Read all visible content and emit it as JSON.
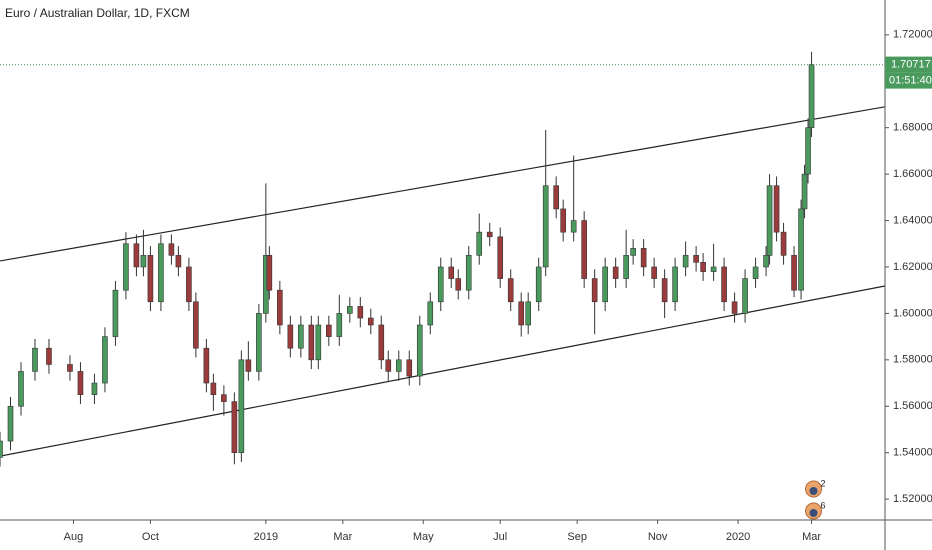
{
  "chart_data": {
    "type": "candlestick",
    "title": "Euro / Australian Dollar, 1D, FXCM",
    "up_color": "#4a9a5e",
    "down_color": "#9b3b3b",
    "x": [
      0,
      3,
      6,
      10,
      14,
      20,
      23,
      27,
      30,
      33,
      36,
      39,
      41,
      43,
      46,
      49,
      51,
      54,
      56,
      59,
      61,
      64,
      67,
      69,
      71,
      74,
      76,
      77,
      80,
      83,
      86,
      89,
      91,
      94,
      97,
      100,
      103,
      106,
      109,
      111,
      114,
      117,
      120,
      123,
      126,
      129,
      131,
      134,
      137,
      140,
      143,
      146,
      149,
      151,
      154,
      156,
      159,
      161,
      164,
      167,
      170,
      173,
      176,
      179,
      181,
      184,
      187,
      190,
      193,
      196,
      199,
      201,
      204,
      207,
      210,
      213,
      216,
      219,
      220,
      222,
      224,
      227,
      229,
      230,
      231,
      232
    ],
    "open": [
      1.538,
      1.545,
      1.56,
      1.575,
      1.585,
      1.578,
      1.575,
      1.565,
      1.57,
      1.59,
      1.61,
      1.63,
      1.62,
      1.625,
      1.605,
      1.63,
      1.625,
      1.62,
      1.605,
      1.585,
      1.57,
      1.565,
      1.562,
      1.54,
      1.58,
      1.575,
      1.6,
      1.625,
      1.61,
      1.595,
      1.585,
      1.595,
      1.58,
      1.595,
      1.59,
      1.6,
      1.603,
      1.598,
      1.595,
      1.58,
      1.575,
      1.58,
      1.573,
      1.595,
      1.605,
      1.62,
      1.615,
      1.61,
      1.625,
      1.635,
      1.633,
      1.615,
      1.605,
      1.595,
      1.605,
      1.62,
      1.655,
      1.645,
      1.635,
      1.64,
      1.615,
      1.605,
      1.62,
      1.615,
      1.625,
      1.628,
      1.62,
      1.615,
      1.605,
      1.62,
      1.625,
      1.622,
      1.618,
      1.62,
      1.605,
      1.6,
      1.615,
      1.62,
      1.625,
      1.655,
      1.635,
      1.625,
      1.61,
      1.645,
      1.66,
      1.68
    ],
    "high": [
      1.549,
      1.564,
      1.579,
      1.589,
      1.589,
      1.582,
      1.579,
      1.574,
      1.594,
      1.614,
      1.635,
      1.634,
      1.636,
      1.629,
      1.634,
      1.634,
      1.629,
      1.624,
      1.609,
      1.589,
      1.574,
      1.569,
      1.566,
      1.584,
      1.588,
      1.604,
      1.656,
      1.629,
      1.614,
      1.599,
      1.599,
      1.599,
      1.599,
      1.599,
      1.608,
      1.607,
      1.607,
      1.602,
      1.599,
      1.584,
      1.584,
      1.584,
      1.599,
      1.609,
      1.624,
      1.624,
      1.619,
      1.629,
      1.643,
      1.639,
      1.637,
      1.619,
      1.609,
      1.609,
      1.624,
      1.679,
      1.659,
      1.649,
      1.668,
      1.644,
      1.619,
      1.624,
      1.624,
      1.636,
      1.632,
      1.632,
      1.624,
      1.619,
      1.624,
      1.631,
      1.629,
      1.626,
      1.63,
      1.624,
      1.609,
      1.619,
      1.624,
      1.629,
      1.66,
      1.659,
      1.639,
      1.629,
      1.649,
      1.664,
      1.684,
      1.7127
    ],
    "low": [
      1.534,
      1.541,
      1.556,
      1.571,
      1.574,
      1.571,
      1.561,
      1.561,
      1.566,
      1.586,
      1.606,
      1.616,
      1.616,
      1.601,
      1.601,
      1.621,
      1.616,
      1.601,
      1.581,
      1.566,
      1.558,
      1.556,
      1.535,
      1.536,
      1.571,
      1.571,
      1.596,
      1.606,
      1.591,
      1.581,
      1.581,
      1.576,
      1.576,
      1.586,
      1.586,
      1.596,
      1.594,
      1.591,
      1.576,
      1.571,
      1.571,
      1.569,
      1.569,
      1.591,
      1.601,
      1.611,
      1.606,
      1.606,
      1.621,
      1.629,
      1.611,
      1.601,
      1.59,
      1.591,
      1.601,
      1.616,
      1.641,
      1.631,
      1.631,
      1.611,
      1.591,
      1.601,
      1.611,
      1.611,
      1.621,
      1.616,
      1.611,
      1.598,
      1.601,
      1.616,
      1.618,
      1.614,
      1.614,
      1.601,
      1.596,
      1.596,
      1.611,
      1.616,
      1.621,
      1.631,
      1.621,
      1.607,
      1.606,
      1.641,
      1.656,
      1.676
    ],
    "close": [
      1.545,
      1.56,
      1.575,
      1.585,
      1.578,
      1.575,
      1.565,
      1.57,
      1.59,
      1.61,
      1.63,
      1.62,
      1.625,
      1.605,
      1.63,
      1.625,
      1.62,
      1.605,
      1.585,
      1.57,
      1.565,
      1.562,
      1.54,
      1.58,
      1.575,
      1.6,
      1.625,
      1.61,
      1.595,
      1.585,
      1.595,
      1.58,
      1.595,
      1.59,
      1.6,
      1.603,
      1.598,
      1.595,
      1.58,
      1.575,
      1.58,
      1.573,
      1.595,
      1.605,
      1.62,
      1.615,
      1.61,
      1.625,
      1.635,
      1.633,
      1.615,
      1.605,
      1.595,
      1.605,
      1.62,
      1.655,
      1.645,
      1.635,
      1.64,
      1.615,
      1.605,
      1.62,
      1.615,
      1.625,
      1.628,
      1.62,
      1.615,
      1.605,
      1.62,
      1.625,
      1.622,
      1.618,
      1.62,
      1.605,
      1.6,
      1.615,
      1.62,
      1.625,
      1.655,
      1.635,
      1.625,
      1.61,
      1.645,
      1.66,
      1.68,
      1.70717
    ],
    "xlim": [
      0,
      253
    ],
    "xticks": [
      {
        "value": 21,
        "label": "Aug"
      },
      {
        "value": 43,
        "label": "Oct"
      },
      {
        "value": 76,
        "label": "2019"
      },
      {
        "value": 98,
        "label": "Mar"
      },
      {
        "value": 121,
        "label": "May"
      },
      {
        "value": 143,
        "label": "Jul"
      },
      {
        "value": 165,
        "label": "Sep"
      },
      {
        "value": 188,
        "label": "Nov"
      },
      {
        "value": 211,
        "label": "2020"
      },
      {
        "value": 232,
        "label": "Mar"
      }
    ],
    "ylim": [
      1.511,
      1.735
    ],
    "yticks": [
      {
        "value": 1.52,
        "label": "1.52000"
      },
      {
        "value": 1.54,
        "label": "1.54000"
      },
      {
        "value": 1.56,
        "label": "1.56000"
      },
      {
        "value": 1.58,
        "label": "1.58000"
      },
      {
        "value": 1.6,
        "label": "1.60000"
      },
      {
        "value": 1.62,
        "label": "1.62000"
      },
      {
        "value": 1.64,
        "label": "1.64000"
      },
      {
        "value": 1.66,
        "label": "1.66000"
      },
      {
        "value": 1.68,
        "label": "1.68000"
      },
      {
        "value": 1.72,
        "label": "1.72000"
      }
    ],
    "trend_lines": [
      {
        "x": [
          0,
          253
        ],
        "y": [
          1.6226,
          1.689
        ]
      },
      {
        "x": [
          0,
          253
        ],
        "y": [
          1.5385,
          1.6118
        ]
      }
    ],
    "countdown": "01:51:40",
    "event_labels": [
      "2",
      "6"
    ],
    "grid": false
  }
}
